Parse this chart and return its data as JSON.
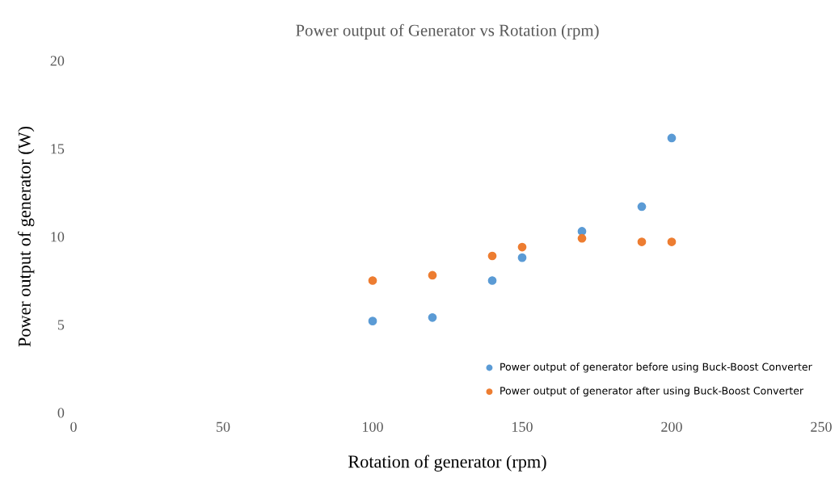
{
  "chart_data": {
    "type": "scatter",
    "title": "Power output of Generator vs Rotation (rpm)",
    "xlabel": "Rotation of generator (rpm)",
    "ylabel": "Power output of generator (W)",
    "x": [
      100,
      120,
      140,
      150,
      170,
      190,
      200
    ],
    "series": [
      {
        "name": "Power output of generator before using Buck-Boost Converter",
        "color": "#5b9bd5",
        "values": [
          5.2,
          5.4,
          7.5,
          8.8,
          10.3,
          11.7,
          15.6
        ]
      },
      {
        "name": "Power output of generator after using Buck-Boost Converter",
        "color": "#ed7d31",
        "values": [
          7.5,
          7.8,
          8.9,
          9.4,
          9.9,
          9.7,
          9.7
        ]
      }
    ],
    "xlim": [
      0,
      250
    ],
    "xticks": [
      0,
      50,
      100,
      150,
      200,
      250
    ],
    "ylim": [
      0,
      20
    ],
    "yticks": [
      0,
      5,
      10,
      15,
      20
    ],
    "grid": false,
    "legend": "bottom right",
    "marker": "circle"
  }
}
